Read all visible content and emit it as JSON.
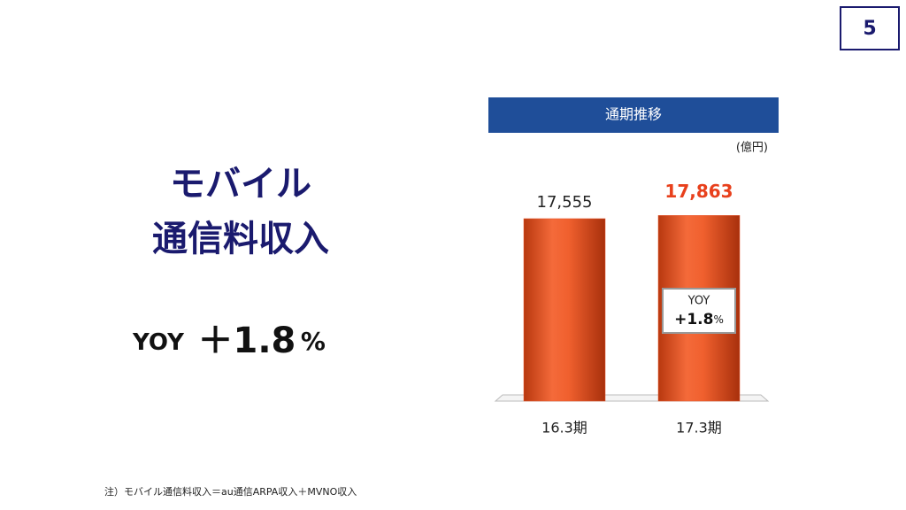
{
  "page_number": "5",
  "headline": [
    "モバイル",
    "通信料収入"
  ],
  "yoy": {
    "label": "YOY",
    "value": "＋1.8",
    "unit": "%"
  },
  "footnote": "注）モバイル通信料収入＝au通信ARPA収入＋MVNO収入",
  "chart_data": {
    "type": "bar",
    "title": "通期推移",
    "unit_label": "(億円)",
    "categories": [
      "16.3期",
      "17.3期"
    ],
    "values": [
      17555,
      17863
    ],
    "value_labels": [
      "17,555",
      "17,863"
    ],
    "color": "#e8542a",
    "highlight_color": "#e8401c",
    "ylim": [
      0,
      19000
    ],
    "annotation": {
      "label": "YOY",
      "value": "+1.8",
      "unit": "%"
    }
  }
}
